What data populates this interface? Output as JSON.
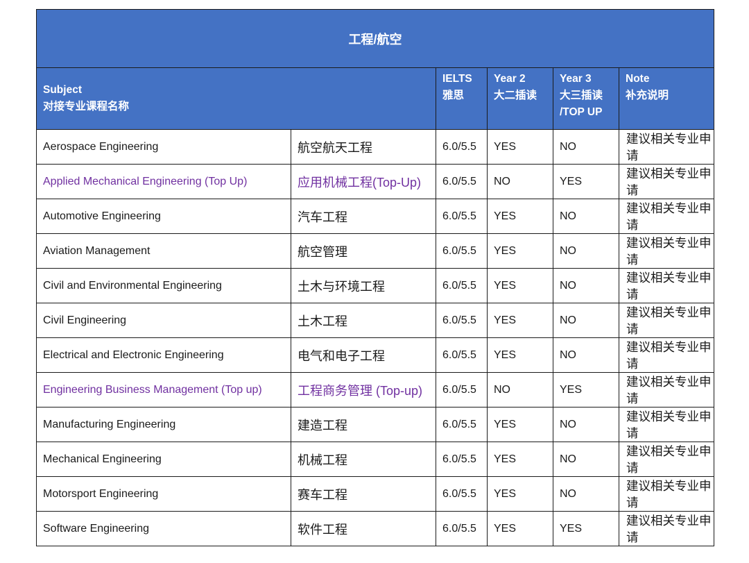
{
  "title": "工程/航空",
  "headers": {
    "subject": [
      "Subject",
      "对接专业课程名称"
    ],
    "ielts": [
      "IELTS",
      "雅思"
    ],
    "year2": [
      "Year 2",
      "大二插读"
    ],
    "year3": [
      "Year 3",
      "大三插读",
      "/TOP UP"
    ],
    "note": [
      "Note",
      "补充说明"
    ]
  },
  "rows": [
    {
      "en": "Aerospace Engineering",
      "cn": "航空航天工程",
      "ielts": "6.0/5.5",
      "year2": "YES",
      "year3": "NO",
      "note": "建议相关专业申请",
      "highlight": false
    },
    {
      "en": "Applied Mechanical Engineering (Top Up)",
      "cn": "应用机械工程(Top-Up)",
      "ielts": "6.0/5.5",
      "year2": "NO",
      "year3": "YES",
      "note": "建议相关专业申请",
      "highlight": true
    },
    {
      "en": "Automotive Engineering",
      "cn": "汽车工程",
      "ielts": "6.0/5.5",
      "year2": "YES",
      "year3": "NO",
      "note": "建议相关专业申请",
      "highlight": false
    },
    {
      "en": "Aviation Management",
      "cn": "航空管理",
      "ielts": "6.0/5.5",
      "year2": "YES",
      "year3": "NO",
      "note": "建议相关专业申请",
      "highlight": false
    },
    {
      "en": "Civil and Environmental Engineering",
      "cn": "土木与环境工程",
      "ielts": "6.0/5.5",
      "year2": "YES",
      "year3": "NO",
      "note": "建议相关专业申请",
      "highlight": false
    },
    {
      "en": "Civil Engineering",
      "cn": "土木工程",
      "ielts": "6.0/5.5",
      "year2": "YES",
      "year3": "NO",
      "note": "建议相关专业申请",
      "highlight": false
    },
    {
      "en": "Electrical and Electronic Engineering",
      "cn": "电气和电子工程",
      "ielts": "6.0/5.5",
      "year2": "YES",
      "year3": "NO",
      "note": "建议相关专业申请",
      "highlight": false
    },
    {
      "en": "Engineering Business Management (Top up)",
      "cn": "工程商务管理 (Top-up)",
      "ielts": "6.0/5.5",
      "year2": "NO",
      "year3": "YES",
      "note": "建议相关专业申请",
      "highlight": true
    },
    {
      "en": "Manufacturing Engineering",
      "cn": "建造工程",
      "ielts": "6.0/5.5",
      "year2": "YES",
      "year3": "NO",
      "note": "建议相关专业申请",
      "highlight": false
    },
    {
      "en": "Mechanical Engineering",
      "cn": "机械工程",
      "ielts": "6.0/5.5",
      "year2": "YES",
      "year3": "NO",
      "note": "建议相关专业申请",
      "highlight": false
    },
    {
      "en": "Motorsport Engineering",
      "cn": "赛车工程",
      "ielts": "6.0/5.5",
      "year2": "YES",
      "year3": "NO",
      "note": "建议相关专业申请",
      "highlight": false
    },
    {
      "en": "Software Engineering",
      "cn": "软件工程",
      "ielts": "6.0/5.5",
      "year2": "YES",
      "year3": "YES",
      "note": "建议相关专业申请",
      "highlight": false
    }
  ],
  "colors": {
    "header_bg": "#4472c4",
    "header_text": "#ffffff",
    "highlight_text": "#7030a0",
    "border": "#1a1a1a"
  }
}
